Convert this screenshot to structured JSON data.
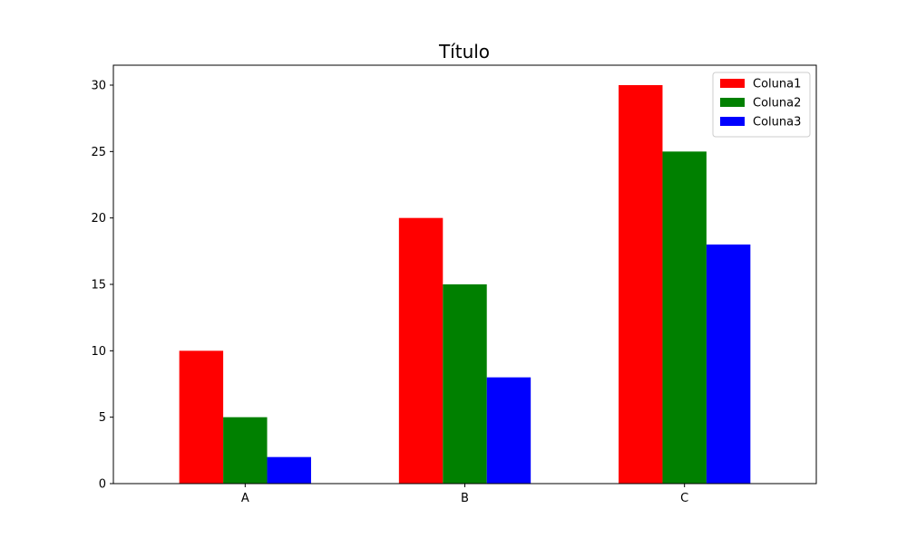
{
  "chart_data": {
    "type": "bar",
    "title": "Título",
    "xlabel": "",
    "ylabel": "",
    "categories": [
      "A",
      "B",
      "C"
    ],
    "series": [
      {
        "name": "Coluna1",
        "color": "#ff0000",
        "values": [
          10,
          20,
          30
        ]
      },
      {
        "name": "Coluna2",
        "color": "#008000",
        "values": [
          5,
          15,
          25
        ]
      },
      {
        "name": "Coluna3",
        "color": "#0000ff",
        "values": [
          2,
          8,
          18
        ]
      }
    ],
    "ylim": [
      0,
      31.5
    ],
    "yticks": [
      0,
      5,
      10,
      15,
      20,
      25,
      30
    ],
    "grid": false,
    "legend_position": "top-right"
  }
}
